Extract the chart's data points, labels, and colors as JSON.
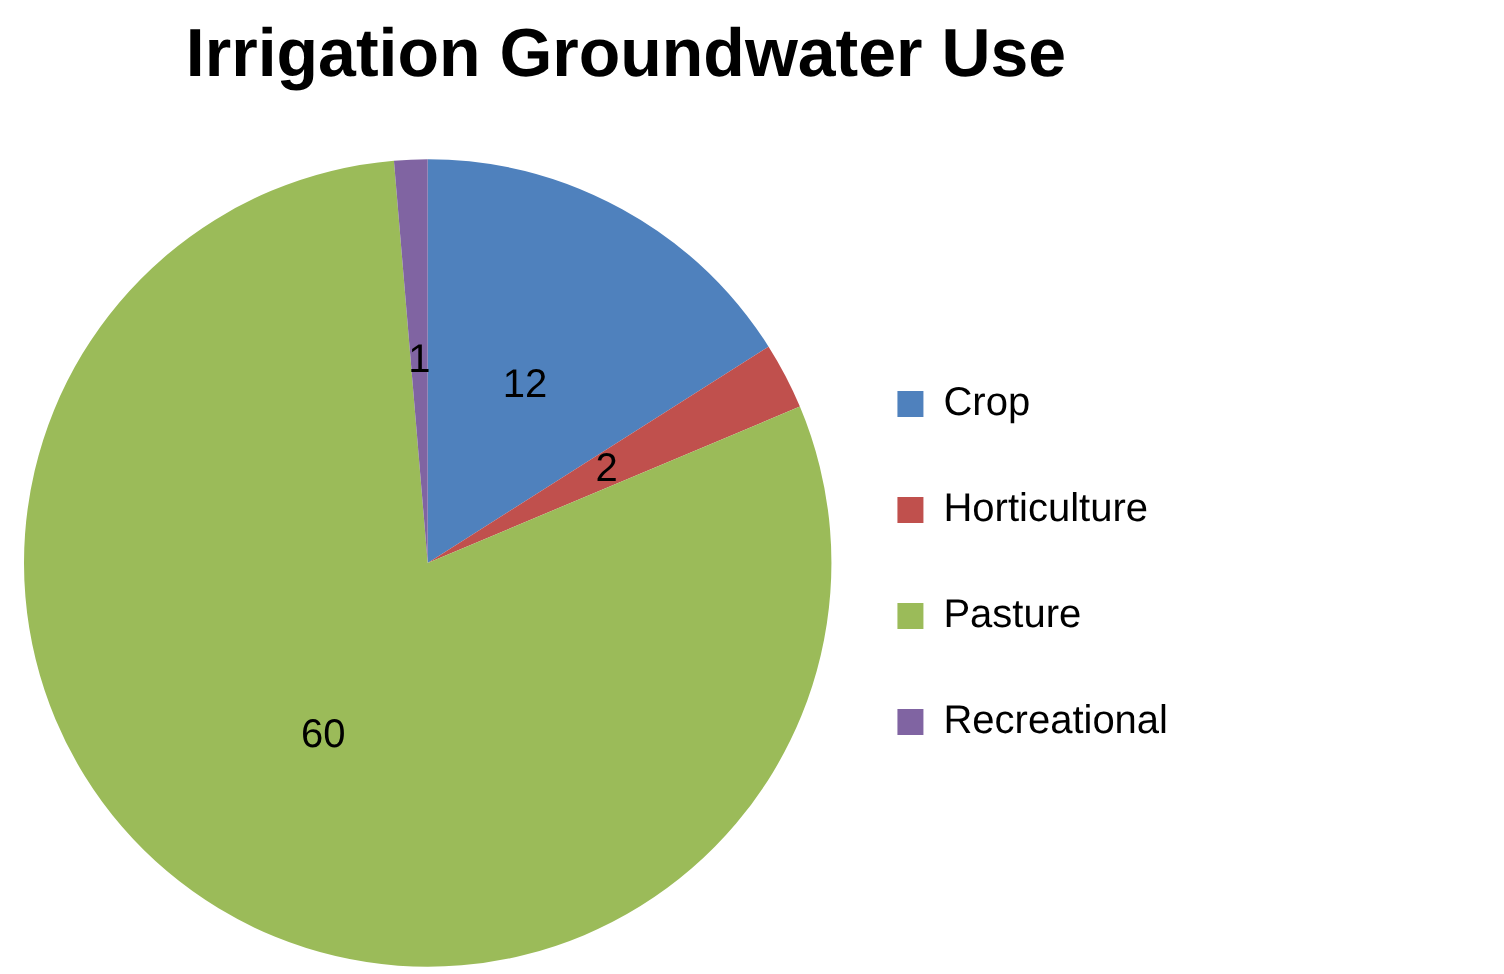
{
  "chart_data": {
    "type": "pie",
    "title": "Irrigation Groundwater Use",
    "categories": [
      "Crop",
      "Horticulture",
      "Pasture",
      "Recreational"
    ],
    "values": [
      12,
      2,
      60,
      1
    ],
    "colors": [
      "#4f81bd",
      "#c0504d",
      "#9bbb59",
      "#8064a2"
    ],
    "data_labels": true,
    "legend": "right"
  }
}
